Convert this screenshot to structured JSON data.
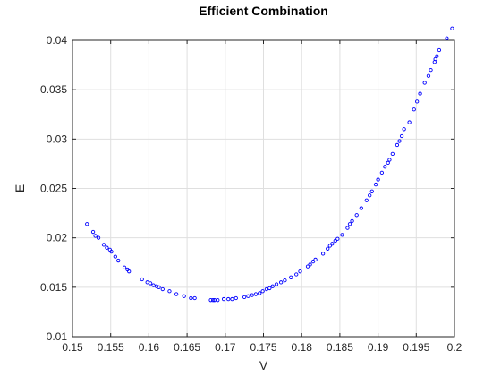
{
  "chart_data": {
    "type": "scatter",
    "title": "Efficient Combination",
    "xlabel": "V",
    "ylabel": "E",
    "xlim": [
      0.15,
      0.2
    ],
    "ylim": [
      0.01,
      0.04
    ],
    "xticks": [
      "0.15",
      "0.155",
      "0.16",
      "0.165",
      "0.17",
      "0.175",
      "0.18",
      "0.185",
      "0.19",
      "0.195",
      "0.2"
    ],
    "yticks": [
      "0.01",
      "0.015",
      "0.02",
      "0.025",
      "0.03",
      "0.035",
      "0.04"
    ],
    "grid": true,
    "marker": "circle",
    "marker_color": "#0000ff",
    "points": [
      [
        0.1519,
        0.0214
      ],
      [
        0.1527,
        0.0206
      ],
      [
        0.153,
        0.0202
      ],
      [
        0.1534,
        0.02
      ],
      [
        0.1541,
        0.0193
      ],
      [
        0.1545,
        0.019
      ],
      [
        0.1549,
        0.0188
      ],
      [
        0.1551,
        0.0186
      ],
      [
        0.1556,
        0.0181
      ],
      [
        0.156,
        0.0177
      ],
      [
        0.1568,
        0.017
      ],
      [
        0.1572,
        0.0168
      ],
      [
        0.1574,
        0.0166
      ],
      [
        0.1591,
        0.0158
      ],
      [
        0.1598,
        0.0155
      ],
      [
        0.1602,
        0.0154
      ],
      [
        0.1606,
        0.0152
      ],
      [
        0.161,
        0.0151
      ],
      [
        0.1613,
        0.015
      ],
      [
        0.1618,
        0.0148
      ],
      [
        0.1627,
        0.0146
      ],
      [
        0.1636,
        0.0143
      ],
      [
        0.1646,
        0.0141
      ],
      [
        0.1655,
        0.0139
      ],
      [
        0.166,
        0.0139
      ],
      [
        0.1681,
        0.0137
      ],
      [
        0.1684,
        0.0137
      ],
      [
        0.1686,
        0.0137
      ],
      [
        0.169,
        0.0137
      ],
      [
        0.1698,
        0.0138
      ],
      [
        0.1704,
        0.0138
      ],
      [
        0.1709,
        0.0138
      ],
      [
        0.1714,
        0.0139
      ],
      [
        0.1725,
        0.014
      ],
      [
        0.173,
        0.0141
      ],
      [
        0.1735,
        0.0142
      ],
      [
        0.174,
        0.0143
      ],
      [
        0.1745,
        0.0144
      ],
      [
        0.1749,
        0.0146
      ],
      [
        0.1754,
        0.0148
      ],
      [
        0.1758,
        0.0149
      ],
      [
        0.1762,
        0.0151
      ],
      [
        0.1767,
        0.0153
      ],
      [
        0.1773,
        0.0155
      ],
      [
        0.1778,
        0.0157
      ],
      [
        0.1786,
        0.016
      ],
      [
        0.1793,
        0.0163
      ],
      [
        0.1798,
        0.0166
      ],
      [
        0.1808,
        0.0171
      ],
      [
        0.1811,
        0.0173
      ],
      [
        0.1815,
        0.0176
      ],
      [
        0.1818,
        0.0178
      ],
      [
        0.1828,
        0.0184
      ],
      [
        0.1834,
        0.0189
      ],
      [
        0.1837,
        0.0192
      ],
      [
        0.184,
        0.0194
      ],
      [
        0.1844,
        0.0197
      ],
      [
        0.1847,
        0.0199
      ],
      [
        0.1853,
        0.0203
      ],
      [
        0.186,
        0.021
      ],
      [
        0.1863,
        0.0214
      ],
      [
        0.1866,
        0.0217
      ],
      [
        0.1872,
        0.0223
      ],
      [
        0.1878,
        0.023
      ],
      [
        0.1885,
        0.0238
      ],
      [
        0.1889,
        0.0243
      ],
      [
        0.1892,
        0.0247
      ],
      [
        0.1897,
        0.0254
      ],
      [
        0.19,
        0.0259
      ],
      [
        0.1905,
        0.0266
      ],
      [
        0.1909,
        0.0272
      ],
      [
        0.1913,
        0.0276
      ],
      [
        0.1915,
        0.0279
      ],
      [
        0.1919,
        0.0285
      ],
      [
        0.1925,
        0.0294
      ],
      [
        0.1928,
        0.0298
      ],
      [
        0.1931,
        0.0303
      ],
      [
        0.1934,
        0.031
      ],
      [
        0.1941,
        0.0317
      ],
      [
        0.1947,
        0.033
      ],
      [
        0.1951,
        0.0338
      ],
      [
        0.1955,
        0.0346
      ],
      [
        0.1961,
        0.0357
      ],
      [
        0.1966,
        0.0364
      ],
      [
        0.1969,
        0.037
      ],
      [
        0.1974,
        0.0378
      ],
      [
        0.1975,
        0.0381
      ],
      [
        0.1977,
        0.0384
      ],
      [
        0.198,
        0.039
      ],
      [
        0.199,
        0.0402
      ],
      [
        0.1997,
        0.0412
      ]
    ]
  }
}
